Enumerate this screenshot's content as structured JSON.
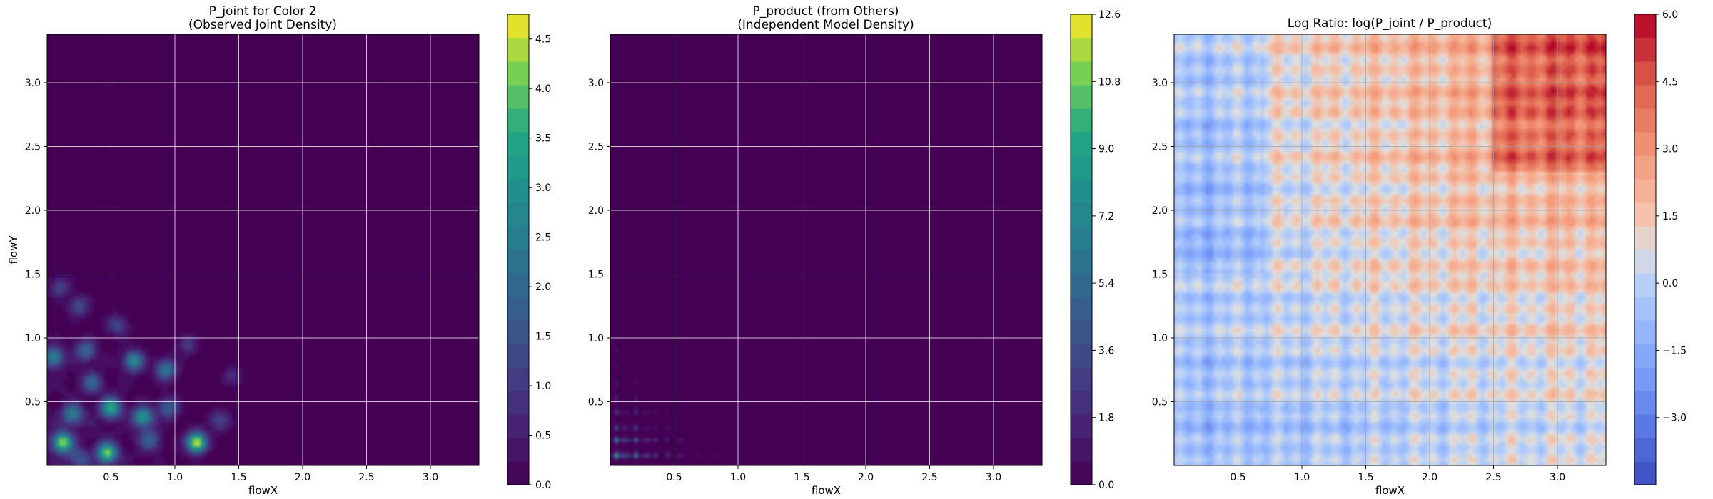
{
  "chart_data": [
    {
      "type": "heatmap",
      "title": "P_joint for Color 2\n(Observed Joint Density)",
      "xlabel": "flowX",
      "ylabel": "flowY",
      "xlim": [
        0,
        3.38
      ],
      "ylim": [
        0,
        3.38
      ],
      "x_ticks": [
        0.5,
        1.0,
        1.5,
        2.0,
        2.5,
        3.0
      ],
      "y_ticks": [
        0.5,
        1.0,
        1.5,
        2.0,
        2.5,
        3.0
      ],
      "grid": true,
      "colormap": "viridis",
      "colorbar": {
        "min": 0.0,
        "max": 4.75,
        "ticks": [
          0.0,
          0.5,
          1.0,
          1.5,
          2.0,
          2.5,
          3.0,
          3.5,
          4.0,
          4.5
        ],
        "tick_labels": [
          "0.0",
          "0.5",
          "1.0",
          "1.5",
          "2.0",
          "2.5",
          "3.0",
          "3.5",
          "4.0",
          "4.5"
        ]
      },
      "hotspots": [
        {
          "x": 0.12,
          "y": 0.18,
          "value": 4.2
        },
        {
          "x": 0.47,
          "y": 0.1,
          "value": 4.0
        },
        {
          "x": 1.17,
          "y": 0.18,
          "value": 4.7
        },
        {
          "x": 0.5,
          "y": 0.45,
          "value": 3.5
        },
        {
          "x": 0.75,
          "y": 0.38,
          "value": 3.2
        },
        {
          "x": 0.2,
          "y": 0.4,
          "value": 2.5
        },
        {
          "x": 0.68,
          "y": 0.82,
          "value": 2.8
        },
        {
          "x": 0.93,
          "y": 0.75,
          "value": 2.4
        },
        {
          "x": 0.3,
          "y": 0.9,
          "value": 2.0
        },
        {
          "x": 0.05,
          "y": 0.85,
          "value": 2.6
        },
        {
          "x": 0.35,
          "y": 0.65,
          "value": 1.8
        },
        {
          "x": 0.95,
          "y": 0.45,
          "value": 1.8
        },
        {
          "x": 0.25,
          "y": 1.25,
          "value": 1.4
        },
        {
          "x": 0.1,
          "y": 1.4,
          "value": 1.2
        },
        {
          "x": 1.35,
          "y": 0.35,
          "value": 1.3
        },
        {
          "x": 0.55,
          "y": 1.1,
          "value": 1.2
        },
        {
          "x": 1.1,
          "y": 0.95,
          "value": 1.0
        },
        {
          "x": 0.8,
          "y": 0.2,
          "value": 1.9
        },
        {
          "x": 0.25,
          "y": 0.05,
          "value": 1.5
        },
        {
          "x": 1.45,
          "y": 0.7,
          "value": 0.8
        }
      ]
    },
    {
      "type": "heatmap",
      "title": "P_product (from Others)\n(Independent Model Density)",
      "xlabel": "flowX",
      "ylabel": "",
      "xlim": [
        0,
        3.38
      ],
      "ylim": [
        0,
        3.38
      ],
      "x_ticks": [
        0.5,
        1.0,
        1.5,
        2.0,
        2.5,
        3.0
      ],
      "y_ticks": [
        0.5,
        1.0,
        1.5,
        2.0,
        2.5,
        3.0
      ],
      "grid": true,
      "colormap": "viridis",
      "colorbar": {
        "min": 0.0,
        "max": 12.6,
        "ticks": [
          0.0,
          1.8,
          3.6,
          5.4,
          7.2,
          9.0,
          10.8,
          12.6
        ],
        "tick_labels": [
          "0.0",
          "1.8",
          "3.6",
          "5.4",
          "7.2",
          "9.0",
          "10.8",
          "12.6"
        ]
      },
      "marginal_x_peaks": [
        {
          "x": 0.05,
          "w": 1.0
        },
        {
          "x": 0.12,
          "w": 0.6
        },
        {
          "x": 0.2,
          "w": 0.9
        },
        {
          "x": 0.28,
          "w": 0.55
        },
        {
          "x": 0.35,
          "w": 0.5
        },
        {
          "x": 0.45,
          "w": 0.45
        },
        {
          "x": 0.55,
          "w": 0.4
        },
        {
          "x": 0.68,
          "w": 0.3
        },
        {
          "x": 0.82,
          "w": 0.3
        },
        {
          "x": 0.98,
          "w": 0.25
        },
        {
          "x": 1.12,
          "w": 0.2
        },
        {
          "x": 1.3,
          "w": 0.18
        },
        {
          "x": 1.45,
          "w": 0.16
        }
      ],
      "marginal_y_peaks": [
        {
          "y": 0.08,
          "w": 1.0
        },
        {
          "y": 0.2,
          "w": 0.9
        },
        {
          "y": 0.3,
          "w": 0.6
        },
        {
          "y": 0.42,
          "w": 0.55
        },
        {
          "y": 0.52,
          "w": 0.5
        },
        {
          "y": 0.65,
          "w": 0.35
        },
        {
          "y": 0.78,
          "w": 0.3
        },
        {
          "y": 0.9,
          "w": 0.28
        },
        {
          "y": 1.02,
          "w": 0.25
        },
        {
          "y": 1.15,
          "w": 0.2
        },
        {
          "y": 1.28,
          "w": 0.2
        },
        {
          "y": 1.4,
          "w": 0.18
        },
        {
          "y": 1.55,
          "w": 0.12
        }
      ]
    },
    {
      "type": "heatmap",
      "title": "Log Ratio: log(P_joint / P_product)",
      "xlabel": "flowX",
      "ylabel": "",
      "xlim": [
        0,
        3.38
      ],
      "ylim": [
        0,
        3.38
      ],
      "x_ticks": [
        0.5,
        1.0,
        1.5,
        2.0,
        2.5,
        3.0
      ],
      "y_ticks": [
        0.5,
        1.0,
        1.5,
        2.0,
        2.5,
        3.0
      ],
      "grid": true,
      "colormap": "coolwarm",
      "colorbar": {
        "min": -4.5,
        "max": 6.0,
        "ticks": [
          -3.0,
          -1.5,
          0.0,
          1.5,
          3.0,
          4.5,
          6.0
        ],
        "tick_labels": [
          "−3.0",
          "−1.5",
          "0.0",
          "1.5",
          "3.0",
          "4.5",
          "6.0"
        ]
      }
    }
  ]
}
